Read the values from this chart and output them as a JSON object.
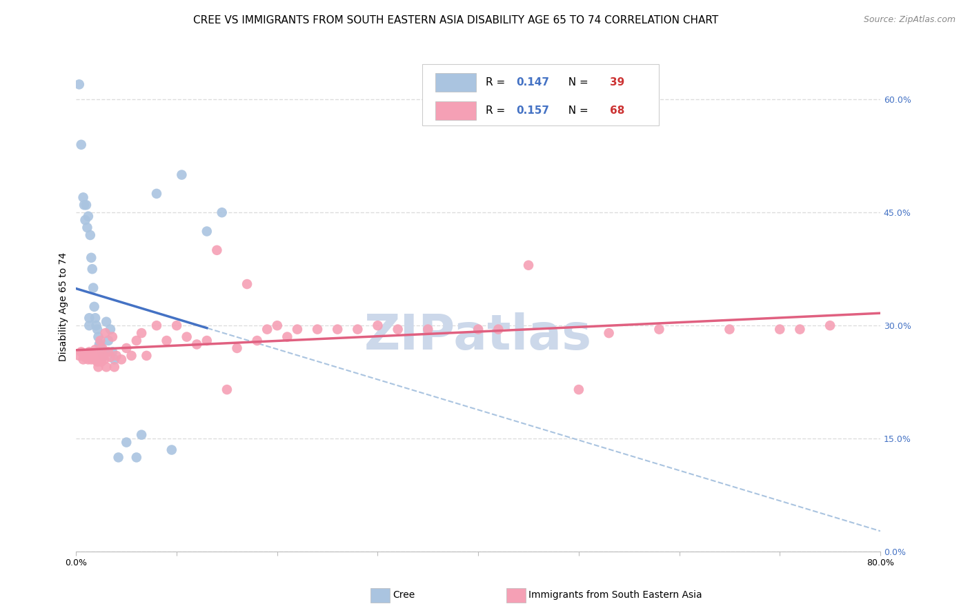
{
  "title": "CREE VS IMMIGRANTS FROM SOUTH EASTERN ASIA DISABILITY AGE 65 TO 74 CORRELATION CHART",
  "source": "Source: ZipAtlas.com",
  "ylabel": "Disability Age 65 to 74",
  "xlim": [
    0.0,
    0.8
  ],
  "ylim": [
    0.0,
    0.65
  ],
  "xticks": [
    0.0,
    0.1,
    0.2,
    0.3,
    0.4,
    0.5,
    0.6,
    0.7,
    0.8
  ],
  "xticklabels": [
    "0.0%",
    "",
    "",
    "",
    "",
    "",
    "",
    "",
    "80.0%"
  ],
  "yticks_right": [
    0.0,
    0.15,
    0.3,
    0.45,
    0.6
  ],
  "ytick_right_labels": [
    "0.0%",
    "15.0%",
    "30.0%",
    "45.0%",
    "60.0%"
  ],
  "cree_R": 0.147,
  "cree_N": 39,
  "immigrants_R": 0.157,
  "immigrants_N": 68,
  "cree_color": "#aac4e0",
  "immigrants_color": "#f5a0b5",
  "cree_line_color": "#4472c4",
  "immigrants_line_color": "#e06080",
  "cree_dashed_color": "#aac4e0",
  "cree_x": [
    0.003,
    0.005,
    0.007,
    0.008,
    0.009,
    0.01,
    0.011,
    0.012,
    0.013,
    0.013,
    0.014,
    0.015,
    0.016,
    0.017,
    0.018,
    0.019,
    0.02,
    0.021,
    0.022,
    0.023,
    0.024,
    0.025,
    0.026,
    0.027,
    0.028,
    0.03,
    0.032,
    0.034,
    0.036,
    0.038,
    0.042,
    0.05,
    0.06,
    0.065,
    0.08,
    0.095,
    0.105,
    0.13,
    0.145
  ],
  "cree_y": [
    0.62,
    0.54,
    0.47,
    0.46,
    0.44,
    0.46,
    0.43,
    0.445,
    0.3,
    0.31,
    0.42,
    0.39,
    0.375,
    0.35,
    0.325,
    0.31,
    0.3,
    0.295,
    0.285,
    0.275,
    0.275,
    0.27,
    0.265,
    0.26,
    0.265,
    0.305,
    0.28,
    0.295,
    0.265,
    0.255,
    0.125,
    0.145,
    0.125,
    0.155,
    0.475,
    0.135,
    0.5,
    0.425,
    0.45
  ],
  "immigrants_x": [
    0.003,
    0.005,
    0.007,
    0.008,
    0.009,
    0.01,
    0.011,
    0.012,
    0.013,
    0.014,
    0.015,
    0.016,
    0.017,
    0.018,
    0.019,
    0.02,
    0.021,
    0.022,
    0.023,
    0.024,
    0.025,
    0.026,
    0.027,
    0.028,
    0.029,
    0.03,
    0.032,
    0.034,
    0.036,
    0.038,
    0.04,
    0.045,
    0.05,
    0.055,
    0.06,
    0.065,
    0.07,
    0.08,
    0.09,
    0.1,
    0.11,
    0.12,
    0.13,
    0.14,
    0.15,
    0.16,
    0.17,
    0.18,
    0.19,
    0.2,
    0.21,
    0.22,
    0.24,
    0.26,
    0.28,
    0.3,
    0.32,
    0.35,
    0.4,
    0.42,
    0.45,
    0.5,
    0.53,
    0.58,
    0.65,
    0.7,
    0.72,
    0.75
  ],
  "immigrants_y": [
    0.26,
    0.265,
    0.255,
    0.26,
    0.258,
    0.262,
    0.258,
    0.255,
    0.265,
    0.26,
    0.255,
    0.258,
    0.262,
    0.255,
    0.268,
    0.258,
    0.252,
    0.245,
    0.26,
    0.28,
    0.252,
    0.27,
    0.26,
    0.255,
    0.29,
    0.245,
    0.265,
    0.258,
    0.285,
    0.245,
    0.26,
    0.255,
    0.27,
    0.26,
    0.28,
    0.29,
    0.26,
    0.3,
    0.28,
    0.3,
    0.285,
    0.275,
    0.28,
    0.4,
    0.215,
    0.27,
    0.355,
    0.28,
    0.295,
    0.3,
    0.285,
    0.295,
    0.295,
    0.295,
    0.295,
    0.3,
    0.295,
    0.295,
    0.295,
    0.295,
    0.38,
    0.215,
    0.29,
    0.295,
    0.295,
    0.295,
    0.295,
    0.3
  ],
  "background_color": "#ffffff",
  "grid_color": "#dddddd",
  "title_fontsize": 11,
  "axis_label_fontsize": 10,
  "tick_fontsize": 9,
  "watermark": "ZIPatlas",
  "watermark_color": "#ccd8ea",
  "watermark_fontsize": 52
}
